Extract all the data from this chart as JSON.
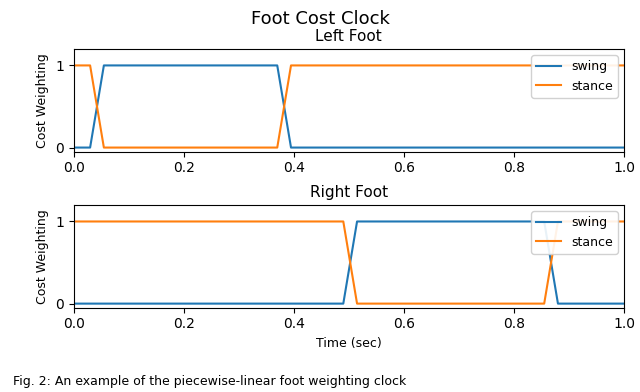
{
  "title": "Foot Cost Clock",
  "left_title": "Left Foot",
  "right_title": "Right Foot",
  "xlabel": "Time (sec)",
  "ylabel": "Cost Weighting",
  "swing_color": "#1f77b4",
  "stance_color": "#ff7f0e",
  "left_swing": {
    "x": [
      0.0,
      0.03,
      0.055,
      0.37,
      0.395,
      0.42,
      1.0
    ],
    "y": [
      0.0,
      0.0,
      1.0,
      1.0,
      0.0,
      0.0,
      0.0
    ]
  },
  "left_stance": {
    "x": [
      0.0,
      0.03,
      0.055,
      0.37,
      0.395,
      0.42,
      1.0
    ],
    "y": [
      1.0,
      1.0,
      0.0,
      0.0,
      1.0,
      1.0,
      1.0
    ]
  },
  "right_swing": {
    "x": [
      0.0,
      0.49,
      0.515,
      0.855,
      0.88,
      0.905,
      1.0
    ],
    "y": [
      0.0,
      0.0,
      1.0,
      1.0,
      0.0,
      0.0,
      0.0
    ]
  },
  "right_stance": {
    "x": [
      0.0,
      0.49,
      0.515,
      0.855,
      0.88,
      0.905,
      1.0
    ],
    "y": [
      1.0,
      1.0,
      0.0,
      0.0,
      1.0,
      1.0,
      1.0
    ]
  },
  "xlim": [
    0.0,
    1.0
  ],
  "ylim": [
    -0.05,
    1.2
  ],
  "yticks": [
    0,
    1
  ],
  "xticks": [
    0.0,
    0.2,
    0.4,
    0.6,
    0.8,
    1.0
  ],
  "caption": "Fig. 2: An example of the piecewise-linear foot weighting clock",
  "legend_labels": [
    "swing",
    "stance"
  ],
  "title_fontsize": 13,
  "subtitle_fontsize": 11,
  "axis_label_fontsize": 9,
  "legend_fontsize": 9,
  "caption_fontsize": 9,
  "linewidth": 1.5
}
